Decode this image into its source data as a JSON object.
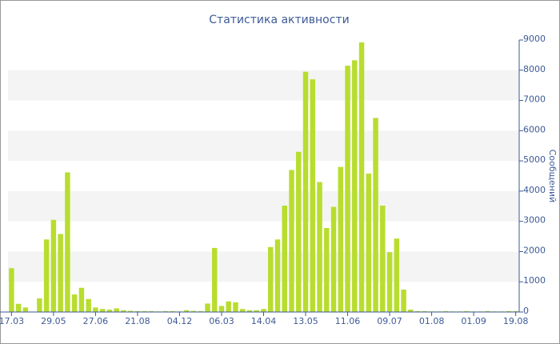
{
  "chart_data": {
    "type": "bar",
    "title": "Статистика активности",
    "y_axis_label": "Сообщений",
    "categories": [
      "17.03",
      null,
      null,
      null,
      null,
      null,
      "29.05",
      null,
      null,
      null,
      null,
      null,
      "27.06",
      null,
      null,
      null,
      null,
      null,
      "21.08",
      null,
      null,
      null,
      null,
      null,
      "04.12",
      null,
      null,
      null,
      null,
      null,
      "06.03",
      null,
      null,
      null,
      null,
      null,
      "14.04",
      null,
      null,
      null,
      null,
      null,
      "13.05",
      null,
      null,
      null,
      null,
      null,
      "11.06",
      null,
      null,
      null,
      null,
      null,
      "09.07",
      null,
      null,
      null,
      null,
      null,
      "01.08",
      null,
      null,
      null,
      null,
      null,
      "01.09",
      null,
      null,
      null,
      null,
      null,
      "19.08"
    ],
    "values": [
      1450,
      270,
      150,
      0,
      450,
      2400,
      3050,
      2580,
      4620,
      580,
      800,
      430,
      150,
      100,
      80,
      120,
      60,
      40,
      30,
      30,
      30,
      20,
      30,
      30,
      20,
      60,
      40,
      30,
      280,
      2120,
      200,
      350,
      320,
      100,
      60,
      60,
      100,
      2150,
      2400,
      3520,
      4700,
      5300,
      7950,
      7700,
      4300,
      2780,
      3480,
      4800,
      8150,
      8330,
      8920,
      4580,
      6420,
      3520,
      1980,
      2430,
      740,
      80,
      30,
      30,
      20,
      20,
      30,
      20,
      20,
      30,
      20,
      20,
      30,
      20,
      20,
      30,
      30
    ],
    "color": "#b8dd2f",
    "ylim": [
      0,
      9000
    ],
    "yticks": [
      0,
      1000,
      2000,
      3000,
      4000,
      5000,
      6000,
      7000,
      8000,
      9000
    ],
    "y_axis_side": "right",
    "alternate_bands": true,
    "band_color": "#f4f4f4"
  }
}
